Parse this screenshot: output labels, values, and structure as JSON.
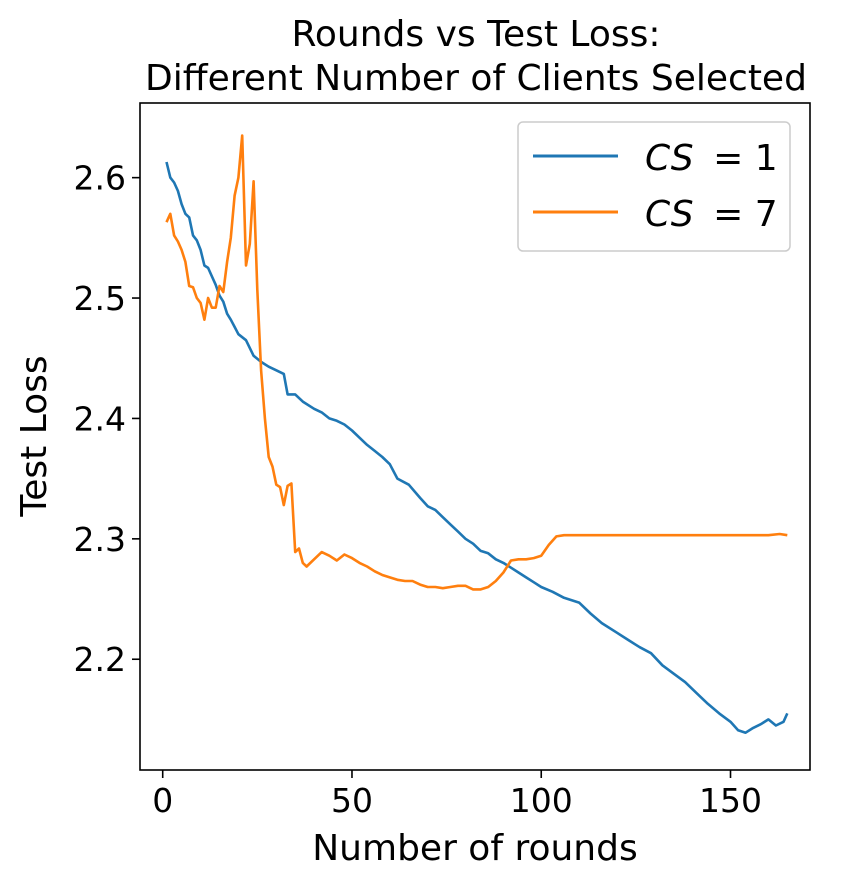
{
  "chart_data": {
    "type": "line",
    "title_lines": [
      "Rounds vs Test Loss:",
      "Different Number of Clients Selected"
    ],
    "xlabel": "Number of rounds",
    "ylabel": "Test Loss",
    "xlim": [
      -6,
      171
    ],
    "ylim": [
      2.108,
      2.662
    ],
    "x_ticks": [
      0,
      50,
      100,
      150
    ],
    "x_tick_labels": [
      "0",
      "50",
      "100",
      "150"
    ],
    "y_ticks": [
      2.2,
      2.3,
      2.4,
      2.5,
      2.6
    ],
    "y_tick_labels": [
      "2.2",
      "2.3",
      "2.4",
      "2.5",
      "2.6"
    ],
    "grid": false,
    "legend_position": "top-right",
    "series": [
      {
        "name": "CS = 1",
        "legend_var": "CS",
        "legend_eq": "= 1",
        "color": "#1f77b4",
        "points": [
          [
            1,
            2.613
          ],
          [
            2,
            2.6
          ],
          [
            3,
            2.596
          ],
          [
            4,
            2.589
          ],
          [
            5,
            2.578
          ],
          [
            6,
            2.57
          ],
          [
            7,
            2.567
          ],
          [
            8,
            2.552
          ],
          [
            9,
            2.548
          ],
          [
            10,
            2.54
          ],
          [
            11,
            2.527
          ],
          [
            12,
            2.525
          ],
          [
            13,
            2.518
          ],
          [
            14,
            2.511
          ],
          [
            15,
            2.502
          ],
          [
            16,
            2.497
          ],
          [
            17,
            2.487
          ],
          [
            18,
            2.482
          ],
          [
            19,
            2.476
          ],
          [
            20,
            2.47
          ],
          [
            22,
            2.465
          ],
          [
            24,
            2.452
          ],
          [
            26,
            2.447
          ],
          [
            28,
            2.443
          ],
          [
            30,
            2.44
          ],
          [
            32,
            2.437
          ],
          [
            33,
            2.42
          ],
          [
            35,
            2.42
          ],
          [
            37,
            2.414
          ],
          [
            40,
            2.408
          ],
          [
            42,
            2.405
          ],
          [
            44,
            2.4
          ],
          [
            46,
            2.398
          ],
          [
            48,
            2.395
          ],
          [
            50,
            2.39
          ],
          [
            52,
            2.384
          ],
          [
            54,
            2.378
          ],
          [
            56,
            2.373
          ],
          [
            58,
            2.368
          ],
          [
            60,
            2.362
          ],
          [
            62,
            2.35
          ],
          [
            65,
            2.345
          ],
          [
            68,
            2.334
          ],
          [
            70,
            2.327
          ],
          [
            72,
            2.324
          ],
          [
            74,
            2.318
          ],
          [
            76,
            2.312
          ],
          [
            78,
            2.306
          ],
          [
            80,
            2.3
          ],
          [
            82,
            2.296
          ],
          [
            84,
            2.29
          ],
          [
            86,
            2.288
          ],
          [
            88,
            2.283
          ],
          [
            90,
            2.28
          ],
          [
            92,
            2.276
          ],
          [
            94,
            2.272
          ],
          [
            96,
            2.268
          ],
          [
            98,
            2.264
          ],
          [
            100,
            2.26
          ],
          [
            103,
            2.256
          ],
          [
            106,
            2.251
          ],
          [
            110,
            2.247
          ],
          [
            113,
            2.238
          ],
          [
            116,
            2.23
          ],
          [
            120,
            2.222
          ],
          [
            123,
            2.216
          ],
          [
            126,
            2.21
          ],
          [
            129,
            2.205
          ],
          [
            132,
            2.195
          ],
          [
            135,
            2.188
          ],
          [
            138,
            2.181
          ],
          [
            141,
            2.172
          ],
          [
            144,
            2.163
          ],
          [
            147,
            2.155
          ],
          [
            150,
            2.148
          ],
          [
            152,
            2.141
          ],
          [
            154,
            2.139
          ],
          [
            156,
            2.143
          ],
          [
            158,
            2.146
          ],
          [
            160,
            2.15
          ],
          [
            162,
            2.145
          ],
          [
            164,
            2.148
          ],
          [
            165,
            2.155
          ]
        ]
      },
      {
        "name": "CS = 7",
        "legend_var": "CS",
        "legend_eq": "= 7",
        "color": "#ff7f0e",
        "points": [
          [
            1,
            2.563
          ],
          [
            2,
            2.57
          ],
          [
            3,
            2.552
          ],
          [
            4,
            2.547
          ],
          [
            5,
            2.54
          ],
          [
            6,
            2.53
          ],
          [
            7,
            2.51
          ],
          [
            8,
            2.509
          ],
          [
            9,
            2.5
          ],
          [
            10,
            2.496
          ],
          [
            11,
            2.482
          ],
          [
            12,
            2.5
          ],
          [
            13,
            2.492
          ],
          [
            14,
            2.492
          ],
          [
            15,
            2.51
          ],
          [
            16,
            2.505
          ],
          [
            17,
            2.53
          ],
          [
            18,
            2.55
          ],
          [
            19,
            2.585
          ],
          [
            20,
            2.6
          ],
          [
            21,
            2.635
          ],
          [
            22,
            2.527
          ],
          [
            23,
            2.545
          ],
          [
            24,
            2.597
          ],
          [
            25,
            2.507
          ],
          [
            26,
            2.44
          ],
          [
            27,
            2.4
          ],
          [
            28,
            2.368
          ],
          [
            29,
            2.36
          ],
          [
            30,
            2.345
          ],
          [
            31,
            2.343
          ],
          [
            32,
            2.328
          ],
          [
            33,
            2.344
          ],
          [
            34,
            2.346
          ],
          [
            35,
            2.289
          ],
          [
            36,
            2.292
          ],
          [
            37,
            2.28
          ],
          [
            38,
            2.277
          ],
          [
            40,
            2.283
          ],
          [
            42,
            2.289
          ],
          [
            44,
            2.286
          ],
          [
            46,
            2.282
          ],
          [
            48,
            2.287
          ],
          [
            50,
            2.284
          ],
          [
            52,
            2.28
          ],
          [
            54,
            2.277
          ],
          [
            56,
            2.273
          ],
          [
            58,
            2.27
          ],
          [
            60,
            2.268
          ],
          [
            62,
            2.266
          ],
          [
            64,
            2.265
          ],
          [
            66,
            2.265
          ],
          [
            68,
            2.262
          ],
          [
            70,
            2.26
          ],
          [
            72,
            2.26
          ],
          [
            74,
            2.259
          ],
          [
            76,
            2.26
          ],
          [
            78,
            2.261
          ],
          [
            80,
            2.261
          ],
          [
            82,
            2.258
          ],
          [
            84,
            2.258
          ],
          [
            86,
            2.26
          ],
          [
            88,
            2.265
          ],
          [
            90,
            2.272
          ],
          [
            92,
            2.282
          ],
          [
            94,
            2.283
          ],
          [
            96,
            2.283
          ],
          [
            98,
            2.284
          ],
          [
            100,
            2.286
          ],
          [
            102,
            2.295
          ],
          [
            104,
            2.302
          ],
          [
            106,
            2.303
          ],
          [
            110,
            2.303
          ],
          [
            120,
            2.303
          ],
          [
            130,
            2.303
          ],
          [
            140,
            2.303
          ],
          [
            150,
            2.303
          ],
          [
            160,
            2.303
          ],
          [
            163,
            2.304
          ],
          [
            165,
            2.303
          ]
        ]
      }
    ]
  }
}
